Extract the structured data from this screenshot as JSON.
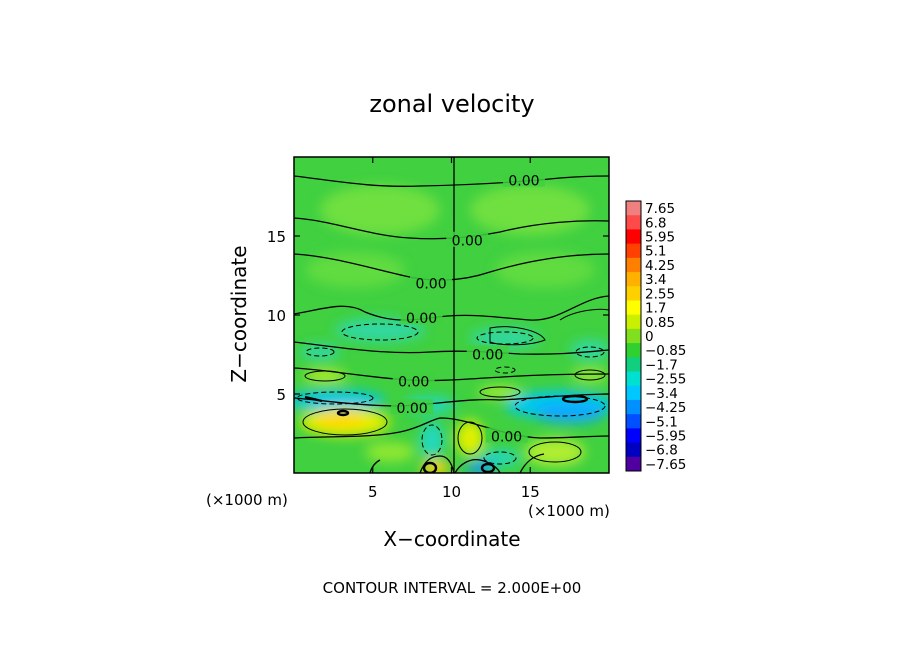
{
  "chart_data": {
    "type": "heatmap",
    "title": "zonal velocity",
    "xlabel": "X−coordinate",
    "ylabel": "Z−coordinate",
    "x_unit_left": "(×1000 m)",
    "x_unit_right": "(×1000 m)",
    "xlim": [
      0,
      20
    ],
    "ylim": [
      0,
      20
    ],
    "x_ticks": [
      "5",
      "10",
      "15"
    ],
    "x_tick_values": [
      5,
      10,
      15
    ],
    "y_ticks": [
      "5",
      "10",
      "15"
    ],
    "y_tick_values": [
      5,
      10,
      15
    ],
    "contour_labels": [
      {
        "text": "0.00",
        "x": 14.6,
        "z": 18.5
      },
      {
        "text": "0.00",
        "x": 11.0,
        "z": 14.7
      },
      {
        "text": "0.00",
        "x": 8.7,
        "z": 12.0
      },
      {
        "text": "0.00",
        "x": 8.1,
        "z": 9.8
      },
      {
        "text": "0.00",
        "x": 12.3,
        "z": 7.5
      },
      {
        "text": "0.00",
        "x": 7.6,
        "z": 5.8
      },
      {
        "text": "0.00",
        "x": 7.5,
        "z": 4.1
      },
      {
        "text": "0.00",
        "x": 13.5,
        "z": 2.3
      }
    ],
    "colorbar": {
      "labels": [
        "7.65",
        "6.8",
        "5.95",
        "5.1",
        "4.25",
        "3.4",
        "2.55",
        "1.7",
        "0.85",
        "0",
        "−0.85",
        "−1.7",
        "−2.55",
        "−3.4",
        "−4.25",
        "−5.1",
        "−5.95",
        "−6.8",
        "−7.65"
      ],
      "colors": [
        "#f08080",
        "#ff4a4a",
        "#ff0000",
        "#ff4000",
        "#ff8000",
        "#ffb000",
        "#ffd000",
        "#ffff00",
        "#c8f000",
        "#80e020",
        "#30d030",
        "#10d080",
        "#00e0d0",
        "#00c8ff",
        "#0090ff",
        "#0050ff",
        "#0000ff",
        "#0000c0",
        "#5000a0"
      ]
    },
    "footer": "CONTOUR INTERVAL = 2.000E+00"
  }
}
